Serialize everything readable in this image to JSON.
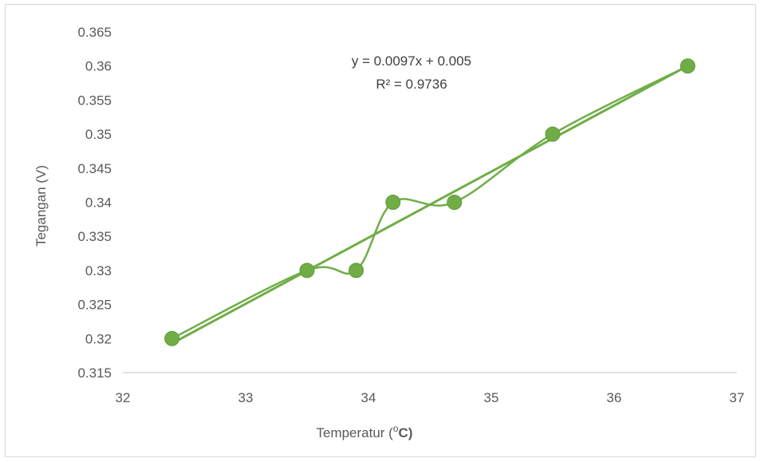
{
  "colors": {
    "series": "#70ad47",
    "axis": "#d9d9d9",
    "text": "#595959"
  },
  "chart_data": {
    "type": "scatter",
    "style": "smoothed-line-with-markers",
    "xlabel_main": "Temperatur (",
    "xlabel_sup": "o",
    "xlabel_unit": "C)",
    "ylabel": "Tegangan (V)",
    "xlim": [
      32,
      37
    ],
    "ylim": [
      0.315,
      0.365
    ],
    "xticks": [
      "32",
      "33",
      "34",
      "35",
      "36",
      "37"
    ],
    "yticks": [
      "0.315",
      "0.32",
      "0.325",
      "0.33",
      "0.335",
      "0.34",
      "0.345",
      "0.35",
      "0.355",
      "0.36",
      "0.365"
    ],
    "grid": false,
    "legend": "none",
    "points": [
      {
        "x": 32.4,
        "y": 0.32
      },
      {
        "x": 33.5,
        "y": 0.33
      },
      {
        "x": 33.9,
        "y": 0.33
      },
      {
        "x": 34.2,
        "y": 0.34
      },
      {
        "x": 34.7,
        "y": 0.34
      },
      {
        "x": 35.5,
        "y": 0.35
      },
      {
        "x": 36.6,
        "y": 0.36
      }
    ],
    "trendline": {
      "type": "linear",
      "slope": 0.0097,
      "intercept": 0.005
    },
    "equation_text": "y = 0.0097x + 0.005",
    "r2_text": "R² = 0.9736"
  }
}
